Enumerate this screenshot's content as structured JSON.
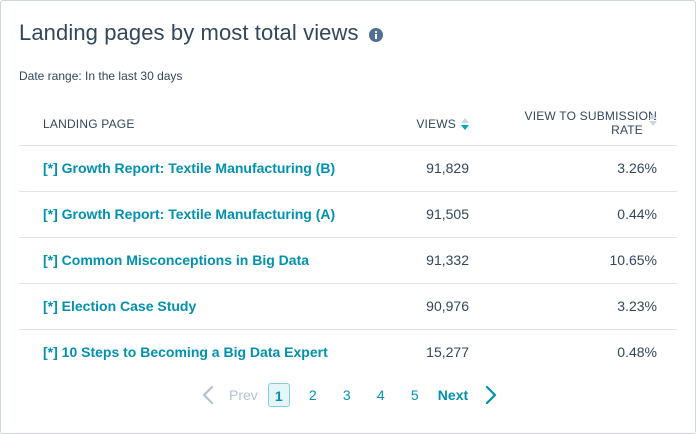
{
  "report": {
    "title": "Landing pages by most total views",
    "date_range": "Date range: In the last 30 days"
  },
  "table": {
    "headers": {
      "page": "LANDING PAGE",
      "views": "VIEWS",
      "rate_line1": "VIEW TO SUBMISSION",
      "rate_line2": "RATE"
    },
    "rows": [
      {
        "page": "[*] Growth Report: Textile Manufacturing (B)",
        "views": "91,829",
        "rate": "3.26%"
      },
      {
        "page": "[*] Growth Report: Textile Manufacturing (A)",
        "views": "91,505",
        "rate": "0.44%"
      },
      {
        "page": "[*] Common Misconceptions in Big Data",
        "views": "91,332",
        "rate": "10.65%"
      },
      {
        "page": "[*] Election Case Study",
        "views": "90,976",
        "rate": "3.23%"
      },
      {
        "page": "[*] 10 Steps to Becoming a Big Data Expert",
        "views": "15,277",
        "rate": "0.48%"
      }
    ]
  },
  "pagination": {
    "prev_label": "Prev",
    "next_label": "Next",
    "pages": [
      "1",
      "2",
      "3",
      "4",
      "5"
    ],
    "current": "1"
  },
  "colors": {
    "link": "#0091ae",
    "text": "#33475b",
    "border": "#dfe3eb",
    "muted": "#b0c1d4"
  },
  "icons": {
    "info": "info-icon",
    "sort": "sort-icon",
    "prev": "chevron-left-icon",
    "next": "chevron-right-icon"
  }
}
